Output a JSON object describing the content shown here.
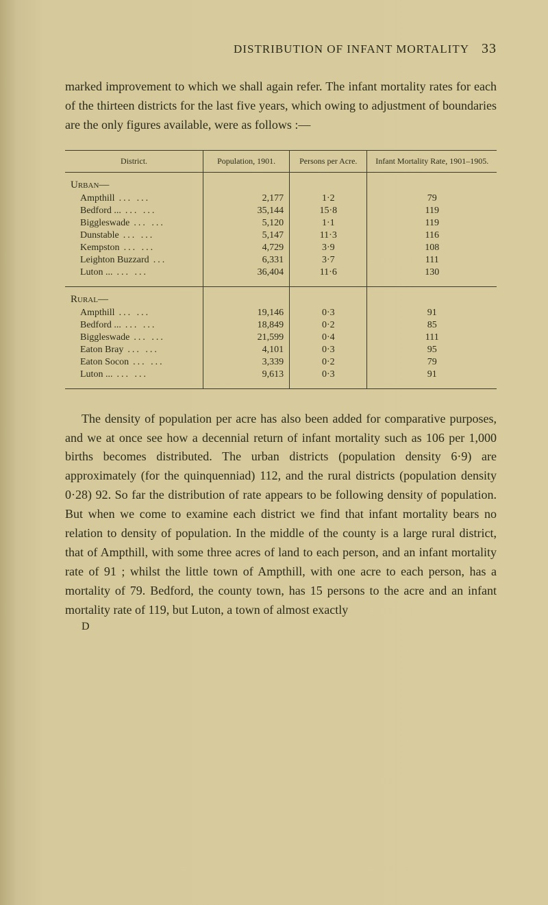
{
  "header": {
    "title": "DISTRIBUTION OF INFANT MORTALITY",
    "page_number": "33"
  },
  "intro": "marked improvement to which we shall again refer. The infant mortality rates for each of the thirteen districts for the last five years, which owing to adjustment of boundaries are the only figures available, were as follows :—",
  "table": {
    "headers": {
      "district": "District.",
      "population": "Population, 1901.",
      "persons": "Persons per Acre.",
      "mortality": "Infant Mortality Rate, 1901–1905."
    },
    "sections": [
      {
        "name": "Urban—",
        "rows": [
          {
            "district": "Ampthill",
            "dots": "...   ...",
            "population": "2,177",
            "persons": "1·2",
            "mortality": "79"
          },
          {
            "district": "Bedford ...",
            "dots": "...   ...",
            "population": "35,144",
            "persons": "15·8",
            "mortality": "119"
          },
          {
            "district": "Biggleswade",
            "dots": "...   ...",
            "population": "5,120",
            "persons": "1·1",
            "mortality": "119"
          },
          {
            "district": "Dunstable",
            "dots": "...   ...",
            "population": "5,147",
            "persons": "11·3",
            "mortality": "116"
          },
          {
            "district": "Kempston",
            "dots": "...   ...",
            "population": "4,729",
            "persons": "3·9",
            "mortality": "108"
          },
          {
            "district": "Leighton Buzzard",
            "dots": "...",
            "population": "6,331",
            "persons": "3·7",
            "mortality": "111"
          },
          {
            "district": "Luton   ...",
            "dots": "...   ...",
            "population": "36,404",
            "persons": "11·6",
            "mortality": "130"
          }
        ]
      },
      {
        "name": "Rural—",
        "rows": [
          {
            "district": "Ampthill",
            "dots": "...   ...",
            "population": "19,146",
            "persons": "0·3",
            "mortality": "91"
          },
          {
            "district": "Bedford ...",
            "dots": "...   ...",
            "population": "18,849",
            "persons": "0·2",
            "mortality": "85"
          },
          {
            "district": "Biggleswade",
            "dots": "...   ...",
            "population": "21,599",
            "persons": "0·4",
            "mortality": "111"
          },
          {
            "district": "Eaton Bray",
            "dots": "...   ...",
            "population": "4,101",
            "persons": "0·3",
            "mortality": "95"
          },
          {
            "district": "Eaton Socon",
            "dots": "...   ...",
            "population": "3,339",
            "persons": "0·2",
            "mortality": "79"
          },
          {
            "district": "Luton   ...",
            "dots": "...   ...",
            "population": "9,613",
            "persons": "0·3",
            "mortality": "91"
          }
        ]
      }
    ]
  },
  "body_para": "The density of population per acre has also been added for comparative purposes, and we at once see how a decennial return of infant mortality such as 106 per 1,000 births becomes distributed. The urban districts (population density 6·9) are approximately (for the quinquenniad) 112, and the rural districts (population density 0·28) 92. So far the distribution of rate appears to be following density of population. But when we come to examine each district we find that infant mortality bears no relation to density of population. In the middle of the county is a large rural district, that of Ampthill, with some three acres of land to each person, and an infant mortality rate of 91 ; whilst the little town of Ampthill, with one acre to each person, has a mortality of 79. Bedford, the county town, has 15 persons to the acre and an infant mortality rate of 119, but Luton, a town of almost exactly",
  "catchword": "D",
  "colors": {
    "background": "#d4c799",
    "text": "#2a2a1a",
    "border": "#3a3a2a"
  }
}
